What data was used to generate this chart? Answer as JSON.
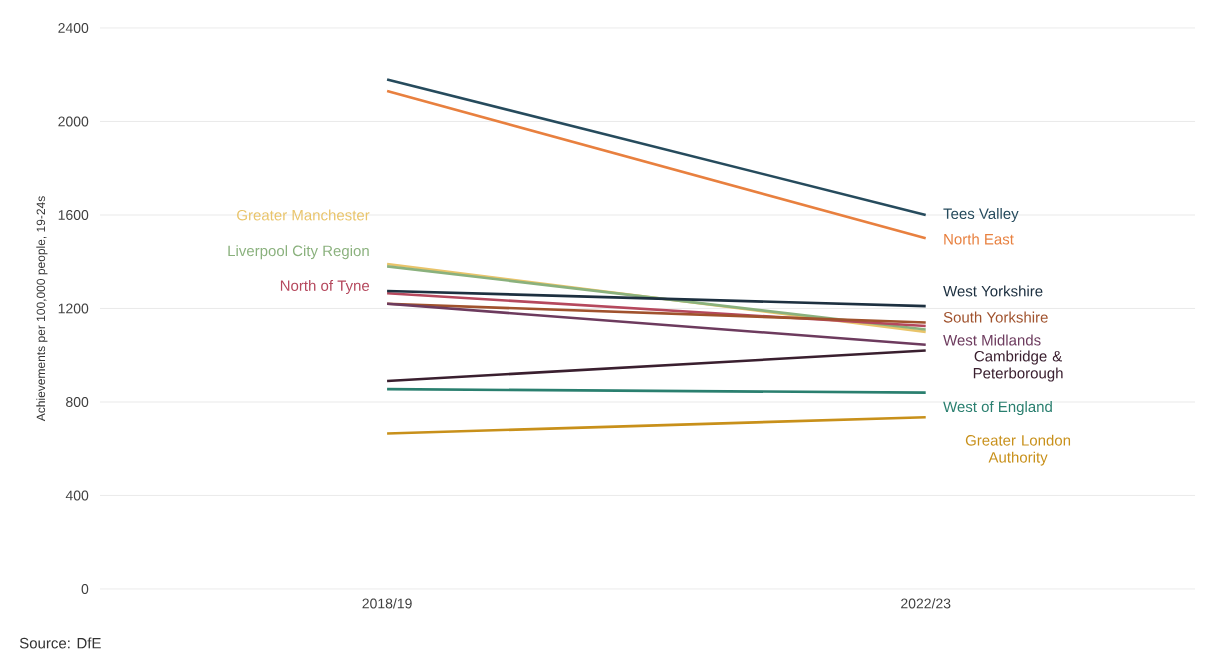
{
  "chart_data": {
    "type": "line",
    "ylabel": "Achievements per 100,000 people, 19-24s",
    "categories": [
      "2018/19",
      "2022/23"
    ],
    "series": [
      {
        "name": "Tees Valley",
        "color": "#264b5d",
        "values": [
          2180,
          1600
        ]
      },
      {
        "name": "North East",
        "color": "#e8803f",
        "values": [
          2130,
          1500
        ]
      },
      {
        "name": "Greater Manchester",
        "color": "#e9c46a",
        "values": [
          1390,
          1100
        ]
      },
      {
        "name": "Liverpool City Region",
        "color": "#8ab17d",
        "values": [
          1380,
          1110
        ]
      },
      {
        "name": "North of Tyne",
        "color": "#b5485d",
        "values": [
          1265,
          1125
        ]
      },
      {
        "name": "West Yorkshire",
        "color": "#1d3040",
        "values": [
          1275,
          1210
        ]
      },
      {
        "name": "South Yorkshire",
        "color": "#a0522d",
        "values": [
          1220,
          1140
        ]
      },
      {
        "name": "West Midlands",
        "color": "#6d3b5e",
        "values": [
          1220,
          1045
        ]
      },
      {
        "name": "Cambridge & Peterborough",
        "color": "#3a1f2f",
        "values": [
          890,
          1020
        ]
      },
      {
        "name": "West of England",
        "color": "#2a7f6f",
        "values": [
          855,
          840
        ]
      },
      {
        "name": "Greater London Authority",
        "color": "#c8901a",
        "values": [
          665,
          735
        ]
      }
    ],
    "ylim": [
      0,
      2400
    ],
    "yticks": [
      0,
      400,
      800,
      1200,
      1600,
      2000,
      2400
    ],
    "grid": "y",
    "legend": false,
    "marker": "none",
    "line_style": "solid",
    "annotations": [
      "Source: DfE"
    ]
  }
}
